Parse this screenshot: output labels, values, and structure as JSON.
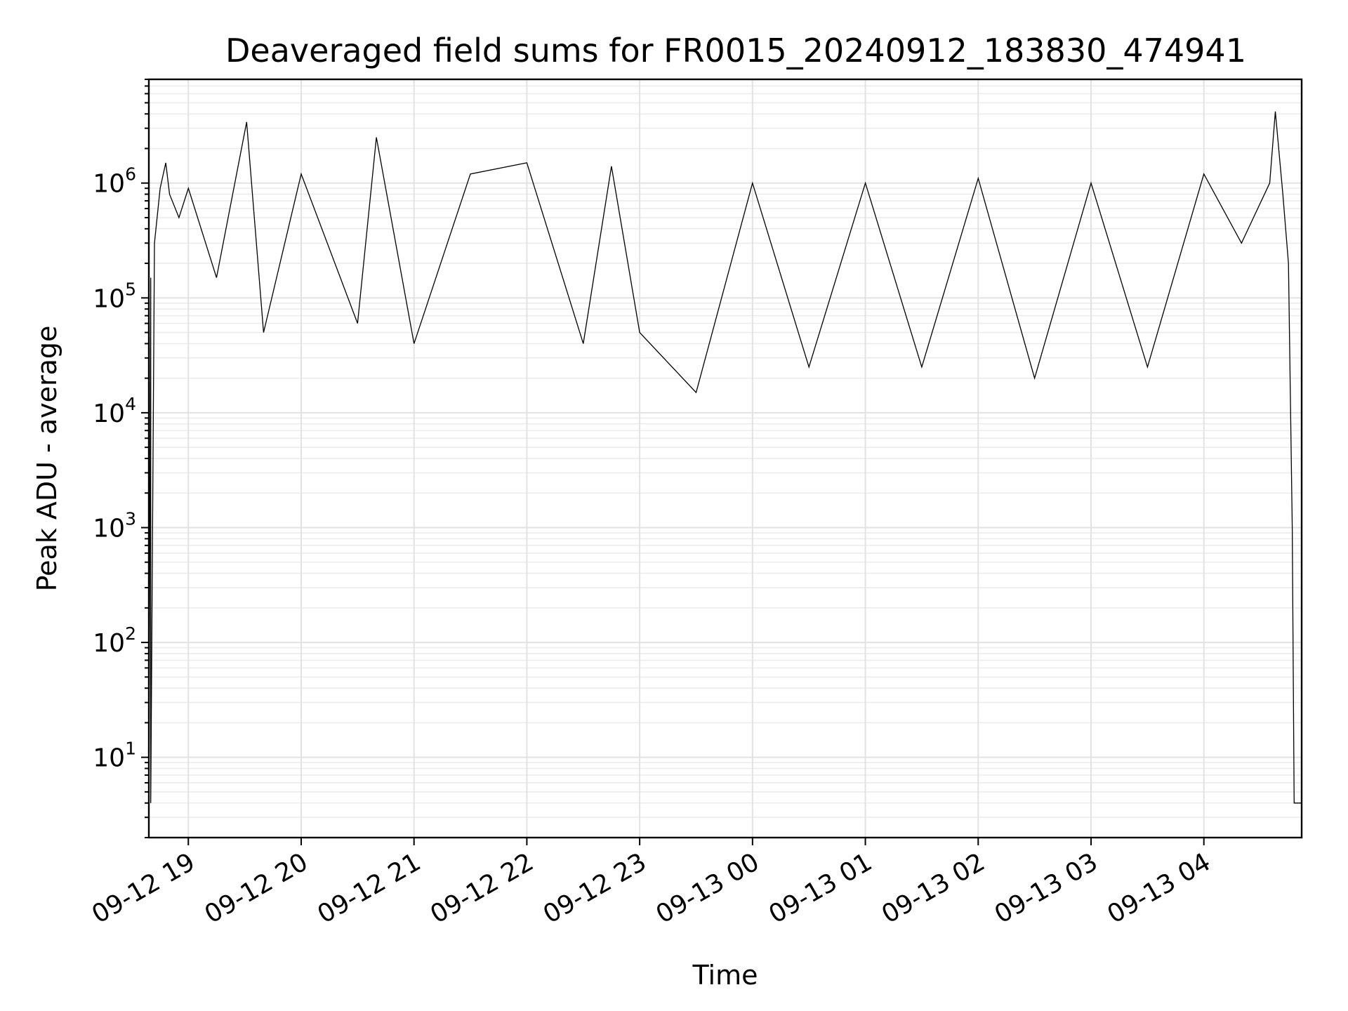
{
  "chart_data": {
    "type": "line",
    "title": "Deaveraged field sums for FR0015_20240912_183830_474941",
    "xlabel": "Time",
    "ylabel": "Peak ADU - average",
    "yscale": "log",
    "ylim": [
      2,
      8000000
    ],
    "xlim": [
      "2024-09-12 18:39",
      "2024-09-13 04:52"
    ],
    "grid": true,
    "x_tick_labels": [
      "09-12 19",
      "09-12 20",
      "09-12 21",
      "09-12 22",
      "09-12 23",
      "09-13 00",
      "09-13 01",
      "09-13 02",
      "09-13 03",
      "09-13 04"
    ],
    "x_ticks": [
      "2024-09-12 19:00",
      "2024-09-12 20:00",
      "2024-09-12 21:00",
      "2024-09-12 22:00",
      "2024-09-12 23:00",
      "2024-09-13 00:00",
      "2024-09-13 01:00",
      "2024-09-13 02:00",
      "2024-09-13 03:00",
      "2024-09-13 04:00"
    ],
    "y_ticks": [
      10,
      100,
      1000,
      10000,
      100000,
      1000000
    ],
    "y_tick_labels": [
      {
        "base": "10",
        "exp": "1"
      },
      {
        "base": "10",
        "exp": "2"
      },
      {
        "base": "10",
        "exp": "3"
      },
      {
        "base": "10",
        "exp": "4"
      },
      {
        "base": "10",
        "exp": "5"
      },
      {
        "base": "10",
        "exp": "6"
      }
    ],
    "series": [
      {
        "color": "#000000",
        "points": [
          [
            "2024-09-12 18:39",
            2
          ],
          [
            "2024-09-12 18:40",
            150000
          ],
          [
            "2024-09-12 18:40",
            4
          ],
          [
            "2024-09-12 18:42",
            300000
          ],
          [
            "2024-09-12 18:45",
            900000
          ],
          [
            "2024-09-12 18:48",
            1500000
          ],
          [
            "2024-09-12 18:50",
            800000
          ],
          [
            "2024-09-12 18:55",
            500000
          ],
          [
            "2024-09-12 19:00",
            900000
          ],
          [
            "2024-09-12 19:15",
            150000
          ],
          [
            "2024-09-12 19:31",
            3400000
          ],
          [
            "2024-09-12 19:40",
            50000
          ],
          [
            "2024-09-12 20:00",
            1200000
          ],
          [
            "2024-09-12 20:30",
            60000
          ],
          [
            "2024-09-12 20:40",
            2500000
          ],
          [
            "2024-09-12 21:00",
            40000
          ],
          [
            "2024-09-12 21:30",
            1200000
          ],
          [
            "2024-09-12 22:00",
            1500000
          ],
          [
            "2024-09-12 22:30",
            40000
          ],
          [
            "2024-09-12 22:45",
            1400000
          ],
          [
            "2024-09-12 23:00",
            50000
          ],
          [
            "2024-09-12 23:30",
            15000
          ],
          [
            "2024-09-13 00:00",
            1000000
          ],
          [
            "2024-09-13 00:30",
            25000
          ],
          [
            "2024-09-13 01:00",
            1000000
          ],
          [
            "2024-09-13 01:30",
            25000
          ],
          [
            "2024-09-13 02:00",
            1100000
          ],
          [
            "2024-09-13 02:30",
            20000
          ],
          [
            "2024-09-13 03:00",
            1000000
          ],
          [
            "2024-09-13 03:30",
            25000
          ],
          [
            "2024-09-13 04:00",
            1200000
          ],
          [
            "2024-09-13 04:20",
            300000
          ],
          [
            "2024-09-13 04:35",
            1000000
          ],
          [
            "2024-09-13 04:38",
            4200000
          ],
          [
            "2024-09-13 04:42",
            800000
          ],
          [
            "2024-09-13 04:45",
            200000
          ],
          [
            "2024-09-13 04:47",
            1000
          ],
          [
            "2024-09-13 04:48",
            4
          ],
          [
            "2024-09-13 04:52",
            4
          ]
        ]
      }
    ]
  }
}
